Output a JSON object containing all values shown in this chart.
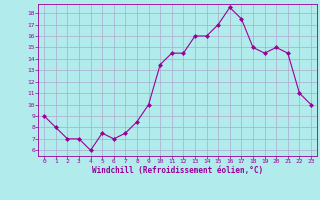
{
  "x": [
    0,
    1,
    2,
    3,
    4,
    5,
    6,
    7,
    8,
    9,
    10,
    11,
    12,
    13,
    14,
    15,
    16,
    17,
    18,
    19,
    20,
    21,
    22,
    23
  ],
  "y": [
    9,
    8,
    7,
    7,
    6,
    7.5,
    7,
    7.5,
    8.5,
    10,
    13.5,
    14.5,
    14.5,
    16,
    16,
    17,
    18.5,
    17.5,
    15,
    14.5,
    15,
    14.5,
    11,
    10
  ],
  "line_color": "#990099",
  "marker": "D",
  "marker_size": 2,
  "bg_color": "#b2ebeb",
  "grid_color": "#aaaacc",
  "xlabel": "Windchill (Refroidissement éolien,°C)",
  "xlabel_color": "#990099",
  "tick_color": "#990099",
  "xlim": [
    -0.5,
    23.5
  ],
  "ylim": [
    5.5,
    18.8
  ],
  "yticks": [
    6,
    7,
    8,
    9,
    10,
    11,
    12,
    13,
    14,
    15,
    16,
    17,
    18
  ],
  "xticks": [
    0,
    1,
    2,
    3,
    4,
    5,
    6,
    7,
    8,
    9,
    10,
    11,
    12,
    13,
    14,
    15,
    16,
    17,
    18,
    19,
    20,
    21,
    22,
    23
  ]
}
